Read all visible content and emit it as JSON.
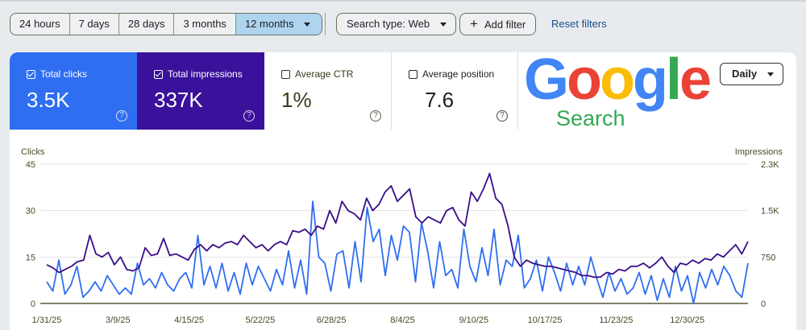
{
  "filters": {
    "ranges": [
      "24 hours",
      "7 days",
      "28 days",
      "3 months",
      "12 months"
    ],
    "selected": "12 months",
    "search_type": "Search type: Web",
    "add_filter": "Add filter",
    "reset": "Reset filters"
  },
  "metrics": [
    {
      "label": "Total clicks",
      "value": "3.5K",
      "checked": true,
      "color": "#2f6ef0"
    },
    {
      "label": "Total impressions",
      "value": "337K",
      "checked": true,
      "color": "#3a119a"
    },
    {
      "label": "Average CTR",
      "value": "1%",
      "checked": false
    },
    {
      "label": "Average position",
      "value": "7.6",
      "checked": false
    }
  ],
  "logo": {
    "text": "Google",
    "sub": "Search"
  },
  "granularity": "Daily",
  "chart_data": {
    "type": "line",
    "ylabel": "Clicks",
    "y2label": "Impressions",
    "ylim": [
      0,
      45
    ],
    "y2lim": [
      0,
      2250
    ],
    "yticks": [
      "0",
      "15",
      "30",
      "45"
    ],
    "y2ticks": [
      "0",
      "750",
      "1.5K",
      "2.3K"
    ],
    "xticks": [
      "1/31/25",
      "3/9/25",
      "4/15/25",
      "5/22/25",
      "6/28/25",
      "8/4/25",
      "9/10/25",
      "10/17/25",
      "11/23/25",
      "12/30/25"
    ],
    "x_range": [
      "1/31/25",
      "1/28/26"
    ],
    "grid": true,
    "series": [
      {
        "name": "Clicks",
        "color": "#2f6ef0",
        "values": [
          7,
          4,
          14,
          3,
          6,
          12,
          2,
          4,
          7,
          4,
          9,
          6,
          3,
          5,
          3,
          13,
          6,
          8,
          5,
          10,
          6,
          4,
          8,
          10,
          5,
          22,
          6,
          12,
          5,
          13,
          4,
          10,
          3,
          13,
          6,
          12,
          8,
          4,
          11,
          6,
          17,
          5,
          14,
          3,
          33,
          15,
          13,
          4,
          16,
          17,
          5,
          20,
          7,
          31,
          20,
          24,
          9,
          22,
          14,
          25,
          23,
          7,
          26,
          17,
          5,
          20,
          9,
          11,
          5,
          24,
          12,
          7,
          18,
          9,
          24,
          6,
          14,
          12,
          22,
          5,
          8,
          14,
          4,
          15,
          10,
          4,
          13,
          6,
          12,
          6,
          15,
          8,
          2,
          10,
          4,
          8,
          3,
          5,
          10,
          3,
          9,
          1,
          8,
          2,
          12,
          4,
          9,
          0,
          10,
          5,
          11,
          6,
          12,
          9,
          4,
          2,
          13
        ]
      },
      {
        "name": "Impressions",
        "color": "#3a0d8a",
        "values": [
          625,
          575,
          500,
          550,
          600,
          675,
          700,
          1100,
          800,
          750,
          825,
          625,
          750,
          550,
          525,
          575,
          900,
          775,
          800,
          1050,
          775,
          800,
          750,
          700,
          875,
          950,
          850,
          950,
          900,
          975,
          1000,
          950,
          1100,
          1000,
          900,
          950,
          850,
          950,
          1000,
          950,
          1175,
          1150,
          1200,
          1100,
          1250,
          1200,
          1500,
          1300,
          1650,
          1500,
          1450,
          1350,
          1700,
          1500,
          1600,
          1800,
          1900,
          1650,
          1750,
          1850,
          1400,
          1300,
          1400,
          1350,
          1300,
          1500,
          1550,
          1350,
          1250,
          1800,
          1650,
          1850,
          2100,
          1700,
          1600,
          1250,
          750,
          600,
          700,
          650,
          625,
          600,
          600,
          575,
          550,
          525,
          500,
          450,
          450,
          425,
          425,
          500,
          475,
          550,
          525,
          600,
          600,
          650,
          575,
          650,
          750,
          600,
          500,
          650,
          625,
          700,
          650,
          725,
          700,
          800,
          750,
          850,
          950,
          800,
          1000
        ]
      }
    ]
  }
}
